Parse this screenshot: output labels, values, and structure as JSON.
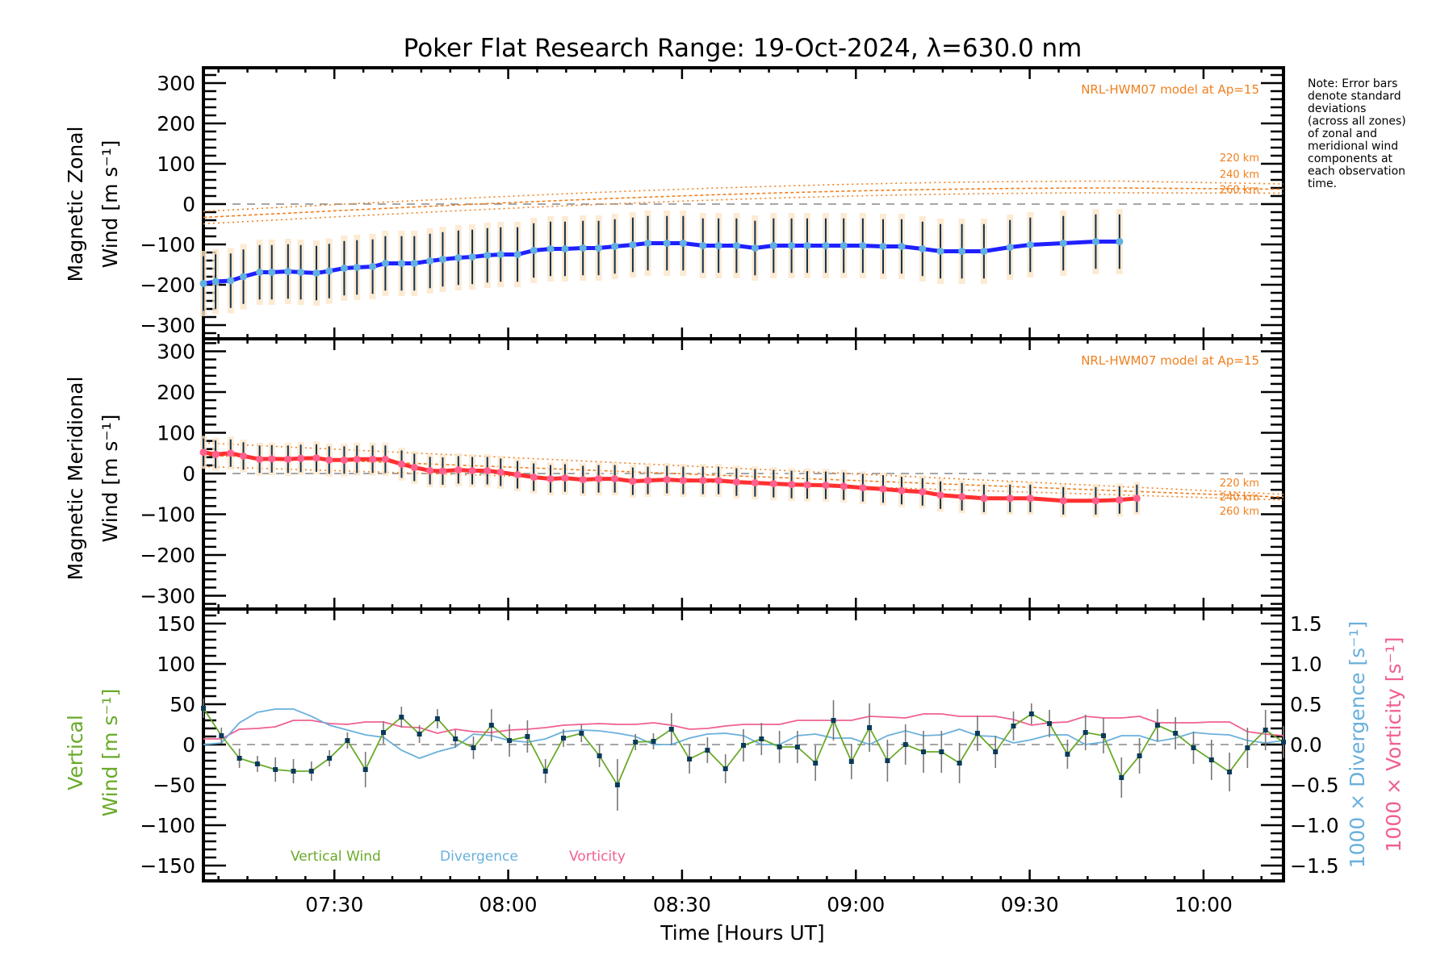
{
  "chart_data": [
    {
      "type": "line",
      "title": "Poker Flat Research Range: 19-Oct-2024, λ=630.0 nm",
      "panel": "zonal",
      "ylabel_line1": "Magnetic Zonal",
      "ylabel_line2": "Wind [m s⁻¹]",
      "ylim": [
        -330,
        330
      ],
      "yticks": [
        300,
        200,
        100,
        0,
        -100,
        -200,
        -300
      ],
      "model_label": "NRL-HWM07 model at Ap=15",
      "model_curves": [
        {
          "name": "220 km",
          "start": -18,
          "peak": 57,
          "end": 50
        },
        {
          "name": "240 km",
          "start": -33,
          "peak": 40,
          "end": 37
        },
        {
          "name": "260 km",
          "start": -49,
          "peak": 28,
          "end": 27
        }
      ],
      "series": [
        {
          "name": "Zonal mean",
          "color": "#2020ff",
          "x_minutes": [
            7.4,
            9.5,
            12.1,
            14.3,
            17.1,
            19.2,
            22.0,
            24.2,
            26.9,
            29.1,
            31.7,
            33.9,
            36.6,
            38.8,
            41.6,
            43.8,
            46.5,
            48.7,
            51.4,
            53.8,
            56.4,
            58.7,
            61.6,
            64.4,
            67.3,
            69.8,
            72.9,
            75.6,
            78.4,
            81.5,
            84.1,
            87.4,
            90.2,
            93.6,
            96.3,
            99.4,
            102.6,
            105.8,
            108.9,
            111.6,
            114.8,
            117.9,
            121.2,
            124.7,
            127.9,
            131.5,
            134.6,
            138.3,
            142.1,
            146.6,
            150.1,
            155.8,
            161.4,
            165.5
          ],
          "values": [
            -197,
            -192,
            -190,
            -180,
            -169,
            -169,
            -167,
            -169,
            -171,
            -166,
            -159,
            -157,
            -155,
            -147,
            -147,
            -147,
            -141,
            -137,
            -133,
            -131,
            -127,
            -125,
            -125,
            -115,
            -111,
            -111,
            -109,
            -109,
            -105,
            -101,
            -97,
            -97,
            -97,
            -103,
            -103,
            -103,
            -109,
            -103,
            -103,
            -103,
            -103,
            -103,
            -103,
            -105,
            -105,
            -111,
            -117,
            -117,
            -117,
            -107,
            -101,
            -97,
            -93,
            -93
          ]
        }
      ]
    },
    {
      "type": "line",
      "panel": "meridional",
      "ylabel_line1": "Magnetic Meridional",
      "ylabel_line2": "Wind [m s⁻¹]",
      "ylim": [
        -330,
        330
      ],
      "yticks": [
        300,
        200,
        100,
        0,
        -100,
        -200,
        -300
      ],
      "model_label": "NRL-HWM07 model at Ap=15",
      "model_curves": [
        {
          "name": "220 km",
          "start": 75,
          "end": -51
        },
        {
          "name": "240 km",
          "start": 45,
          "end": -58
        },
        {
          "name": "260 km",
          "start": 17,
          "end": -65
        }
      ],
      "series": [
        {
          "name": "Meridional mean",
          "color": "#ff3030",
          "values": [
            52,
            47,
            50,
            43,
            35,
            36,
            35,
            37,
            38,
            33,
            33,
            35,
            35,
            35,
            23,
            15,
            7,
            6,
            9,
            7,
            7,
            3,
            -3,
            -9,
            -13,
            -11,
            -15,
            -13,
            -13,
            -19,
            -17,
            -15,
            -17,
            -17,
            -17,
            -21,
            -23,
            -25,
            -27,
            -28,
            -29,
            -31,
            -35,
            -38,
            -42,
            -45,
            -53,
            -57,
            -61,
            -61,
            -61,
            -67,
            -67,
            -65,
            -61
          ]
        }
      ]
    },
    {
      "type": "line",
      "panel": "vertical",
      "xlabel": "Time [Hours UT]",
      "xticks": [
        "07:30",
        "08:00",
        "08:30",
        "09:00",
        "09:30",
        "10:00"
      ],
      "xlim_minutes_after_0700": [
        7.4,
        193.8
      ],
      "ylabel_line1": "Vertical",
      "ylabel_line2": "Wind [m s⁻¹]",
      "ylim": [
        -165,
        165
      ],
      "yticks": [
        150,
        100,
        50,
        0,
        -50,
        -100,
        -150
      ],
      "y2label_div": "1000 × Divergence [s⁻¹]",
      "y2label_vor": "1000 × Vorticity [s⁻¹]",
      "y2ticks": [
        "1.5",
        "1.0",
        "0.5",
        "0.0",
        "−0.5",
        "−1.0",
        "−1.5"
      ],
      "y2lim": [
        -1.65,
        1.65
      ],
      "legend": [
        "Vertical Wind",
        "Divergence",
        "Vorticity"
      ],
      "legend_position": "bottom-left",
      "series": [
        {
          "name": "Vertical Wind",
          "color": "#6aaa2a",
          "values": [
            45,
            11,
            -17,
            -24,
            -31,
            -33,
            -33,
            -17,
            5,
            -31,
            15,
            34,
            13,
            32,
            7,
            -4,
            24,
            5,
            10,
            -33,
            8,
            14,
            -14,
            -50,
            3,
            4,
            19,
            -18,
            -7,
            -30,
            -1,
            7,
            -3,
            -3,
            -23,
            30,
            -21,
            21,
            -20,
            0,
            -9,
            -9,
            -23,
            14,
            -9,
            23,
            38,
            26,
            -12,
            15,
            11,
            -41,
            -14,
            24,
            14,
            -4,
            -19,
            -34,
            -4,
            18,
            3
          ],
          "errors": [
            12,
            10,
            12,
            10,
            15,
            15,
            12,
            10,
            10,
            22,
            14,
            13,
            11,
            12,
            11,
            14,
            20,
            20,
            20,
            15,
            11,
            11,
            14,
            32,
            10,
            10,
            20,
            18,
            16,
            18,
            20,
            20,
            20,
            20,
            22,
            25,
            22,
            30,
            26,
            25,
            26,
            26,
            25,
            22,
            20,
            18,
            13,
            17,
            18,
            22,
            22,
            25,
            22,
            20,
            20,
            20,
            25,
            24,
            25,
            25,
            20
          ]
        },
        {
          "name": "Divergence",
          "color": "#6ab0dc",
          "values": [
            0.0,
            0.02,
            0.27,
            0.4,
            0.44,
            0.44,
            0.35,
            0.24,
            0.18,
            0.12,
            0.09,
            -0.07,
            -0.17,
            -0.09,
            -0.03,
            0.13,
            0.11,
            0.05,
            0.03,
            0.07,
            0.16,
            0.18,
            0.17,
            0.14,
            0.1,
            0.0,
            0.0,
            0.08,
            0.13,
            0.14,
            0.11,
            0.0,
            0.0,
            0.11,
            0.13,
            0.08,
            0.08,
            0.0,
            0.11,
            0.17,
            0.11,
            0.12,
            0.19,
            0.11,
            0.1,
            0.02,
            0.06,
            0.12,
            0.12,
            0.0,
            0.03,
            0.11,
            0.11,
            0.04,
            0.08,
            0.15,
            0.13,
            0.12,
            0.05,
            0.02,
            0.05
          ]
        },
        {
          "name": "Vorticity",
          "color": "#f06090",
          "values": [
            0.07,
            0.07,
            0.19,
            0.2,
            0.22,
            0.3,
            0.3,
            0.26,
            0.25,
            0.28,
            0.28,
            0.22,
            0.21,
            0.14,
            0.19,
            0.16,
            0.15,
            0.18,
            0.19,
            0.21,
            0.24,
            0.25,
            0.26,
            0.25,
            0.25,
            0.27,
            0.24,
            0.19,
            0.2,
            0.23,
            0.25,
            0.25,
            0.25,
            0.3,
            0.3,
            0.3,
            0.3,
            0.35,
            0.34,
            0.33,
            0.38,
            0.38,
            0.35,
            0.35,
            0.35,
            0.31,
            0.24,
            0.27,
            0.28,
            0.35,
            0.33,
            0.33,
            0.35,
            0.27,
            0.27,
            0.27,
            0.28,
            0.28,
            0.16,
            0.13,
            0.11
          ]
        }
      ]
    }
  ],
  "note_lines": [
    "Note: Error bars",
    "denote standard",
    "deviations",
    "(across all zones)",
    "of zonal and",
    "meridional wind",
    "components at",
    "each observation",
    "time."
  ],
  "colors": {
    "zonal": "#2020ff",
    "meridional": "#ff3030",
    "model": "#f08020",
    "vertical": "#6aaa2a",
    "divergence": "#6ab0dc",
    "vorticity": "#f06090",
    "errorbar": "#103050"
  }
}
